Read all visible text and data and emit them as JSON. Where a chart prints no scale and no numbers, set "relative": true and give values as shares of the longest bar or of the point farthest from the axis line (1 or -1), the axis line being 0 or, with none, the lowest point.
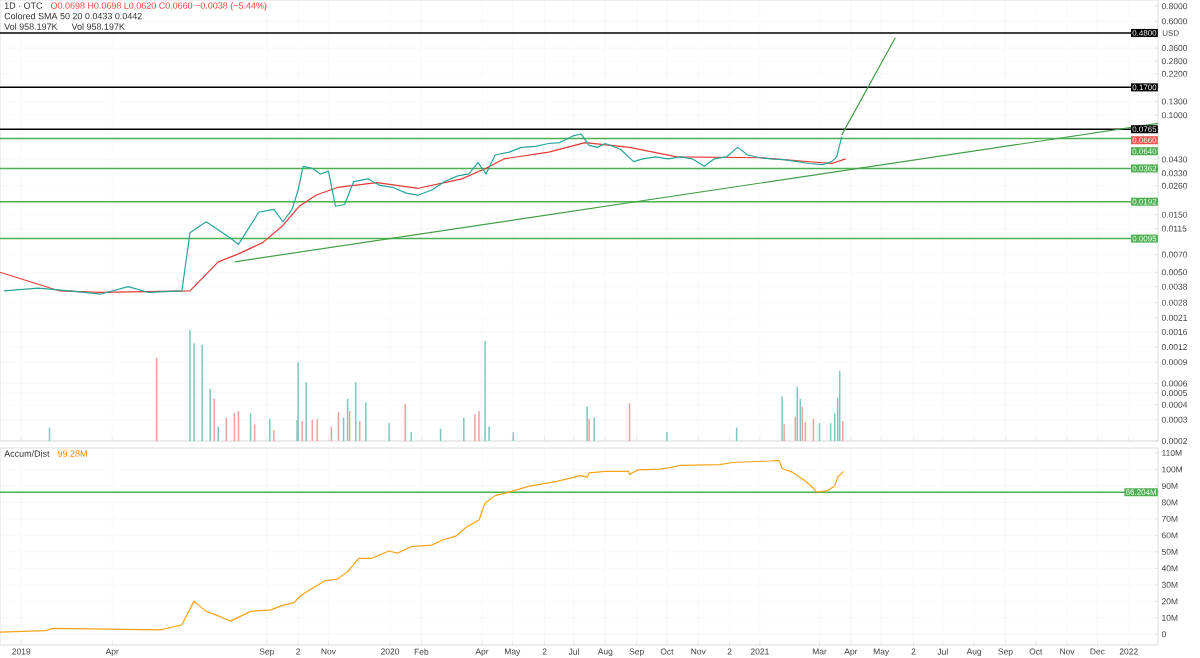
{
  "chart_data": [
    {
      "type": "line",
      "title": "1D · OTC",
      "subtitle": "O0.0698 H0.0698 L0.0620 C0.0660 −0.0038 (−5.44%)",
      "ylabel": "USD",
      "annotations": [
        "Colored SMA 50 20 0.0433 0.0442",
        {
          "text": "0.0660",
          "y": 0.066
        }
      ],
      "log": "y",
      "grid": true,
      "tick_labels": "y",
      "xlim": [
        "2018-12-11",
        "2022-01-30"
      ],
      "ylim": [
        0.0002,
        0.9
      ],
      "xticks": [
        {
          "value": "2019-01-01",
          "label": null
        },
        {
          "value": "2019-04-01",
          "label": null
        },
        {
          "value": "2019-09-01",
          "label": null
        },
        {
          "value": "2019-10-02",
          "label": null
        },
        {
          "value": "2019-11-01",
          "label": null
        },
        {
          "value": "2020-01-01",
          "label": null
        },
        {
          "value": "2020-02-01",
          "label": null
        },
        {
          "value": "2020-04-01",
          "label": null
        },
        {
          "value": "2020-05-01",
          "label": null
        },
        {
          "value": "2020-06-02",
          "label": null
        },
        {
          "value": "2020-07-01",
          "label": null
        },
        {
          "value": "2020-08-01",
          "label": null
        },
        {
          "value": "2020-09-01",
          "label": null
        },
        {
          "value": "2020-10-01",
          "label": null
        },
        {
          "value": "2020-11-01",
          "label": null
        },
        {
          "value": "2020-12-02",
          "label": null
        },
        {
          "value": "2021-01-01",
          "label": null
        },
        {
          "value": "2021-03-01",
          "label": null
        },
        {
          "value": "2021-04-01",
          "label": null
        },
        {
          "value": "2021-05-01",
          "label": null
        },
        {
          "value": "2021-06-02",
          "label": null
        },
        {
          "value": "2021-07-01",
          "label": null
        },
        {
          "value": "2021-08-01",
          "label": null
        },
        {
          "value": "2021-09-01",
          "label": null
        },
        {
          "value": "2021-10-01",
          "label": null
        },
        {
          "value": "2021-11-01",
          "label": null
        },
        {
          "value": "2021-12-01",
          "label": null
        },
        {
          "value": "2022-01-01",
          "label": null
        }
      ],
      "yticks": [
        {
          "value": 0.8,
          "label": "0.8000"
        },
        {
          "value": 0.6,
          "label": "0.6000"
        },
        {
          "value": 0.36,
          "label": "0.3600"
        },
        {
          "value": 0.28,
          "label": "0.2800"
        },
        {
          "value": 0.22,
          "label": "0.2200"
        },
        {
          "value": 0.13,
          "label": "0.1300"
        },
        {
          "value": 0.1,
          "label": "0.1000"
        },
        {
          "value": 0.043,
          "label": "0.0430"
        },
        {
          "value": 0.033,
          "label": "0.0330"
        },
        {
          "value": 0.026,
          "label": "0.0260"
        },
        {
          "value": 0.015,
          "label": "0.0150"
        },
        {
          "value": 0.0115,
          "label": "0.0115"
        },
        {
          "value": 0.007,
          "label": "0.0070"
        },
        {
          "value": 0.005,
          "label": "0.0050"
        },
        {
          "value": 0.0038,
          "label": "0.0038"
        },
        {
          "value": 0.0028,
          "label": "0.0028"
        },
        {
          "value": 0.0021,
          "label": "0.0021"
        },
        {
          "value": 0.0016,
          "label": "0.0016"
        },
        {
          "value": 0.0012,
          "label": "0.0012"
        },
        {
          "value": 0.0009,
          "label": "0.0009"
        },
        {
          "value": 0.0006,
          "label": "0.0006"
        },
        {
          "value": 0.0005,
          "label": "0.0005"
        },
        {
          "value": 0.0004,
          "label": "0.0004"
        },
        {
          "value": 0.0003,
          "label": "0.0003"
        },
        {
          "value": 0.0002,
          "label": "0.0002"
        }
      ],
      "ref_lines": [
        {
          "axis": "y",
          "value": 0.48,
          "label": "0.4800",
          "color": "#000000"
        },
        {
          "axis": "y",
          "value": 0.17,
          "label": "0.1700",
          "color": "#000000"
        },
        {
          "axis": "y",
          "value": 0.0765,
          "label": "0.0765",
          "color": "#000000"
        },
        {
          "axis": "y",
          "value": 0.064,
          "label": "0.0640",
          "color": "#4caf50"
        },
        {
          "axis": "y",
          "value": 0.0362,
          "label": "0.0362",
          "color": "#4caf50"
        },
        {
          "axis": "y",
          "value": 0.0192,
          "label": "0.0192",
          "color": "#4caf50"
        },
        {
          "axis": "y",
          "value": 0.0095,
          "label": "0.0095",
          "color": "#4caf50"
        }
      ],
      "series": [
        {
          "color": "#26a69a",
          "x": [
            "2018-12-15",
            "2019-01-18",
            "2019-02-18",
            "2019-03-21",
            "2019-04-17",
            "2019-05-07",
            "2019-06-09",
            "2019-06-17",
            "2019-07-03",
            "2019-07-27",
            "2019-08-04",
            "2019-08-24",
            "2019-09-08",
            "2019-09-17",
            "2019-09-26",
            "2019-10-02",
            "2019-10-07",
            "2019-10-16",
            "2019-10-24",
            "2019-11-01",
            "2019-11-08",
            "2019-11-17",
            "2019-11-26",
            "2019-12-10",
            "2019-12-22",
            "2020-01-04",
            "2020-01-17",
            "2020-01-29",
            "2020-02-11",
            "2020-02-24",
            "2020-03-08",
            "2020-03-19",
            "2020-03-28",
            "2020-04-05",
            "2020-04-14",
            "2020-04-28",
            "2020-05-10",
            "2020-05-24",
            "2020-06-06",
            "2020-06-17",
            "2020-06-30",
            "2020-07-08",
            "2020-07-16",
            "2020-07-24",
            "2020-08-01",
            "2020-08-16",
            "2020-08-29",
            "2020-09-07",
            "2020-09-20",
            "2020-10-02",
            "2020-10-15",
            "2020-10-26",
            "2020-11-07",
            "2020-11-17",
            "2020-11-29",
            "2020-12-10",
            "2020-12-20",
            "2021-01-01",
            "2021-01-12",
            "2021-01-25",
            "2021-02-07",
            "2021-02-19",
            "2021-03-04",
            "2021-03-13",
            "2021-03-18",
            "2021-03-23"
          ],
          "values": [
            0.0035,
            0.0037,
            0.0035,
            0.0033,
            0.0038,
            0.0034,
            0.0035,
            0.0106,
            0.0131,
            0.0096,
            0.0085,
            0.0157,
            0.0166,
            0.0131,
            0.0166,
            0.0239,
            0.0377,
            0.0363,
            0.0326,
            0.0344,
            0.0176,
            0.0182,
            0.0282,
            0.0297,
            0.0262,
            0.0252,
            0.0226,
            0.0218,
            0.0239,
            0.0282,
            0.0314,
            0.0326,
            0.0405,
            0.0326,
            0.0468,
            0.0494,
            0.0541,
            0.0552,
            0.0583,
            0.0593,
            0.0673,
            0.0699,
            0.0562,
            0.0541,
            0.0583,
            0.0522,
            0.0412,
            0.0435,
            0.0452,
            0.0435,
            0.0452,
            0.0435,
            0.0377,
            0.0435,
            0.0452,
            0.0541,
            0.0468,
            0.0444,
            0.0435,
            0.0428,
            0.0412,
            0.0398,
            0.039,
            0.0412,
            0.0452,
            0.066
          ]
        },
        {
          "color": "#e53935",
          "x": [
            "2018-12-11",
            "2019-02-08",
            "2019-03-21",
            "2019-06-17",
            "2019-07-15",
            "2019-08-04",
            "2019-08-28",
            "2019-09-17",
            "2019-10-03",
            "2019-10-20",
            "2019-11-10",
            "2019-12-19",
            "2020-01-29",
            "2020-03-12",
            "2020-04-05",
            "2020-04-23",
            "2020-06-06",
            "2020-07-12",
            "2020-08-25",
            "2020-10-11",
            "2021-01-01",
            "2021-03-13",
            "2021-03-27"
          ],
          "values": [
            0.005,
            0.0035,
            0.0034,
            0.0035,
            0.0061,
            0.0071,
            0.0088,
            0.0122,
            0.0176,
            0.0218,
            0.0252,
            0.0276,
            0.0248,
            0.0297,
            0.0363,
            0.0435,
            0.0494,
            0.0593,
            0.0541,
            0.0452,
            0.0444,
            0.0398,
            0.0435
          ]
        },
        {
          "color": "#43a047",
          "x": [
            "2019-07-31",
            "2022-01-30"
          ],
          "values": [
            0.0061,
            0.0854
          ]
        },
        {
          "color": "#43a047",
          "x": [
            "2021-03-23",
            "2021-05-15"
          ],
          "values": [
            0.0687,
            0.438
          ]
        }
      ]
    },
    {
      "type": "bar",
      "title": "Vol 958.197K",
      "annotations": [
        "Vol 958.197K"
      ],
      "relative": true,
      "tick_labels": false,
      "xlim": [
        "2018-12-11",
        "2022-01-30"
      ],
      "x": [
        "2019-01-29",
        "2019-05-15",
        "2019-06-17",
        "2019-06-21",
        "2019-06-29",
        "2019-07-07",
        "2019-07-11",
        "2019-07-15",
        "2019-07-23",
        "2019-07-31",
        "2019-08-04",
        "2019-08-16",
        "2019-08-20",
        "2019-09-04",
        "2019-09-08",
        "2019-10-01",
        "2019-10-02",
        "2019-10-06",
        "2019-10-10",
        "2019-10-16",
        "2019-10-21",
        "2019-11-04",
        "2019-11-11",
        "2019-11-16",
        "2019-11-20",
        "2019-11-22",
        "2019-11-28",
        "2019-12-02",
        "2019-12-08",
        "2019-12-31",
        "2020-01-16",
        "2020-01-22",
        "2020-02-20",
        "2020-03-14",
        "2020-03-25",
        "2020-03-29",
        "2020-04-04",
        "2020-04-08",
        "2020-05-02",
        "2020-07-14",
        "2020-07-16",
        "2020-07-21",
        "2020-08-25",
        "2020-10-01",
        "2020-12-09",
        "2021-01-23",
        "2021-01-25",
        "2021-02-05",
        "2021-02-07",
        "2021-02-10",
        "2021-02-12",
        "2021-02-15",
        "2021-02-23",
        "2021-03-01",
        "2021-03-12",
        "2021-03-16",
        "2021-03-19",
        "2021-03-21",
        "2021-03-24"
      ],
      "values": [
        0.12,
        0.75,
        1,
        0.88,
        0.87,
        0.47,
        0.38,
        0.13,
        0.21,
        0.25,
        0.27,
        0.25,
        0.15,
        0.2,
        0.1,
        0.19,
        0.71,
        0.18,
        0.53,
        0.19,
        0.2,
        0.13,
        0.26,
        0.21,
        0.38,
        0.27,
        0.53,
        0.18,
        0.35,
        0.16,
        0.33,
        0.08,
        0.11,
        0.21,
        0.24,
        0.27,
        0.9,
        0.13,
        0.08,
        0.31,
        0.2,
        0.21,
        0.34,
        0.08,
        0.12,
        0.4,
        0.15,
        0.22,
        0.49,
        0.38,
        0.31,
        0.17,
        0.2,
        0.16,
        0.16,
        0.25,
        0.39,
        0.63,
        0.18
      ],
      "colors": [
        "#7cc7bf",
        "#f3a09c",
        "#7cc7bf",
        "#7cc7bf",
        "#7cc7bf",
        "#7cc7bf",
        "#f3a09c",
        "#7cc7bf",
        "#f3a09c",
        "#f3a09c",
        "#f3a09c",
        "#7cc7bf",
        "#f3a09c",
        "#7cc7bf",
        "#f3a09c",
        "#7cc7bf",
        "#7cc7bf",
        "#f3a09c",
        "#7cc7bf",
        "#f3a09c",
        "#f3a09c",
        "#f3a09c",
        "#f3a09c",
        "#7cc7bf",
        "#7cc7bf",
        "#f3a09c",
        "#7cc7bf",
        "#f3a09c",
        "#7cc7bf",
        "#7cc7bf",
        "#f3a09c",
        "#7cc7bf",
        "#7cc7bf",
        "#7cc7bf",
        "#f3a09c",
        "#f3a09c",
        "#7cc7bf",
        "#7cc7bf",
        "#7cc7bf",
        "#7cc7bf",
        "#f3a09c",
        "#7cc7bf",
        "#f3a09c",
        "#7cc7bf",
        "#7cc7bf",
        "#7cc7bf",
        "#f3a09c",
        "#f3a09c",
        "#7cc7bf",
        "#7cc7bf",
        "#f3a09c",
        "#f3a09c",
        "#f3a09c",
        "#7cc7bf",
        "#7cc7bf",
        "#7cc7bf",
        "#7cc7bf",
        "#7cc7bf",
        "#f3a09c"
      ]
    },
    {
      "type": "line",
      "title": "Accum/Dist",
      "subtitle": "99.28M",
      "grid": true,
      "xlim": [
        "2018-12-11",
        "2022-01-30"
      ],
      "ylim": [
        -6.5,
        113
      ],
      "xticks": [
        {
          "value": "2019-01-01",
          "label": "2019"
        },
        {
          "value": "2019-04-01",
          "label": "Apr"
        },
        {
          "value": "2019-09-01",
          "label": "Sep"
        },
        {
          "value": "2019-10-02",
          "label": "2"
        },
        {
          "value": "2019-11-01",
          "label": "Nov"
        },
        {
          "value": "2020-01-01",
          "label": "2020"
        },
        {
          "value": "2020-02-01",
          "label": "Feb"
        },
        {
          "value": "2020-04-01",
          "label": "Apr"
        },
        {
          "value": "2020-05-01",
          "label": "May"
        },
        {
          "value": "2020-06-02",
          "label": "2"
        },
        {
          "value": "2020-07-01",
          "label": "Jul"
        },
        {
          "value": "2020-08-01",
          "label": "Aug"
        },
        {
          "value": "2020-09-01",
          "label": "Sep"
        },
        {
          "value": "2020-10-01",
          "label": "Oct"
        },
        {
          "value": "2020-11-01",
          "label": "Nov"
        },
        {
          "value": "2020-12-02",
          "label": "2"
        },
        {
          "value": "2021-01-01",
          "label": "2021"
        },
        {
          "value": "2021-03-01",
          "label": "Mar"
        },
        {
          "value": "2021-04-01",
          "label": "Apr"
        },
        {
          "value": "2021-05-01",
          "label": "May"
        },
        {
          "value": "2021-06-02",
          "label": "2"
        },
        {
          "value": "2021-07-01",
          "label": "Jul"
        },
        {
          "value": "2021-08-01",
          "label": "Aug"
        },
        {
          "value": "2021-09-01",
          "label": "Sep"
        },
        {
          "value": "2021-10-01",
          "label": "Oct"
        },
        {
          "value": "2021-11-01",
          "label": "Nov"
        },
        {
          "value": "2021-12-01",
          "label": "Dec"
        },
        {
          "value": "2022-01-01",
          "label": "2022"
        }
      ],
      "yticks": [
        {
          "value": 0,
          "label": "0"
        },
        {
          "value": 10,
          "label": "10M"
        },
        {
          "value": 20,
          "label": "20M"
        },
        {
          "value": 30,
          "label": "30M"
        },
        {
          "value": 40,
          "label": "40M"
        },
        {
          "value": 50,
          "label": "50M"
        },
        {
          "value": 60,
          "label": "60M"
        },
        {
          "value": 70,
          "label": "70M"
        },
        {
          "value": 80,
          "label": "80M"
        },
        {
          "value": 90,
          "label": "90M"
        },
        {
          "value": 100,
          "label": "100M"
        },
        {
          "value": 110,
          "label": "110M"
        }
      ],
      "ref_lines": [
        {
          "axis": "y",
          "value": 86.204,
          "label": "86.204M",
          "color": "#4caf50"
        }
      ],
      "series": [
        {
          "color": "#f7a21b",
          "x": [
            "2018-12-11",
            "2019-01-25",
            "2019-02-01",
            "2019-05-19",
            "2019-06-09",
            "2019-06-21",
            "2019-07-03",
            "2019-07-15",
            "2019-07-27",
            "2019-08-16",
            "2019-09-05",
            "2019-09-16",
            "2019-09-28",
            "2019-10-05",
            "2019-10-17",
            "2019-10-29",
            "2019-11-10",
            "2019-11-20",
            "2019-12-01",
            "2019-12-14",
            "2019-12-31",
            "2020-01-08",
            "2020-01-22",
            "2020-02-11",
            "2020-02-22",
            "2020-03-06",
            "2020-03-16",
            "2020-03-29",
            "2020-04-04",
            "2020-04-14",
            "2020-05-01",
            "2020-05-18",
            "2020-06-13",
            "2020-07-08",
            "2020-07-14",
            "2020-07-16",
            "2020-08-01",
            "2020-08-24",
            "2020-08-25",
            "2020-09-02",
            "2020-09-25",
            "2020-10-14",
            "2020-11-22",
            "2020-12-05",
            "2021-01-10",
            "2021-01-20",
            "2021-01-23",
            "2021-02-02",
            "2021-02-15",
            "2021-02-23",
            "2021-02-26",
            "2021-03-09",
            "2021-03-16",
            "2021-03-19",
            "2021-03-25"
          ],
          "values": [
            1.3,
            2.2,
            3.6,
            2.7,
            5.8,
            20.1,
            13.9,
            11.2,
            8,
            13.9,
            14.8,
            17.4,
            19.2,
            23.7,
            28.2,
            32.6,
            33.5,
            38,
            46.1,
            46.1,
            50.5,
            49.2,
            53.2,
            54.1,
            57.2,
            59.5,
            64.8,
            69.3,
            79.6,
            84.1,
            86.8,
            89.9,
            92.6,
            96.2,
            95.3,
            97.9,
            98.8,
            98.8,
            97,
            99.7,
            100.2,
            102.4,
            102.9,
            104.2,
            105.1,
            105.5,
            100.6,
            98.4,
            93,
            88.6,
            86.3,
            87.2,
            89.9,
            95.3,
            98.8
          ]
        }
      ]
    }
  ]
}
